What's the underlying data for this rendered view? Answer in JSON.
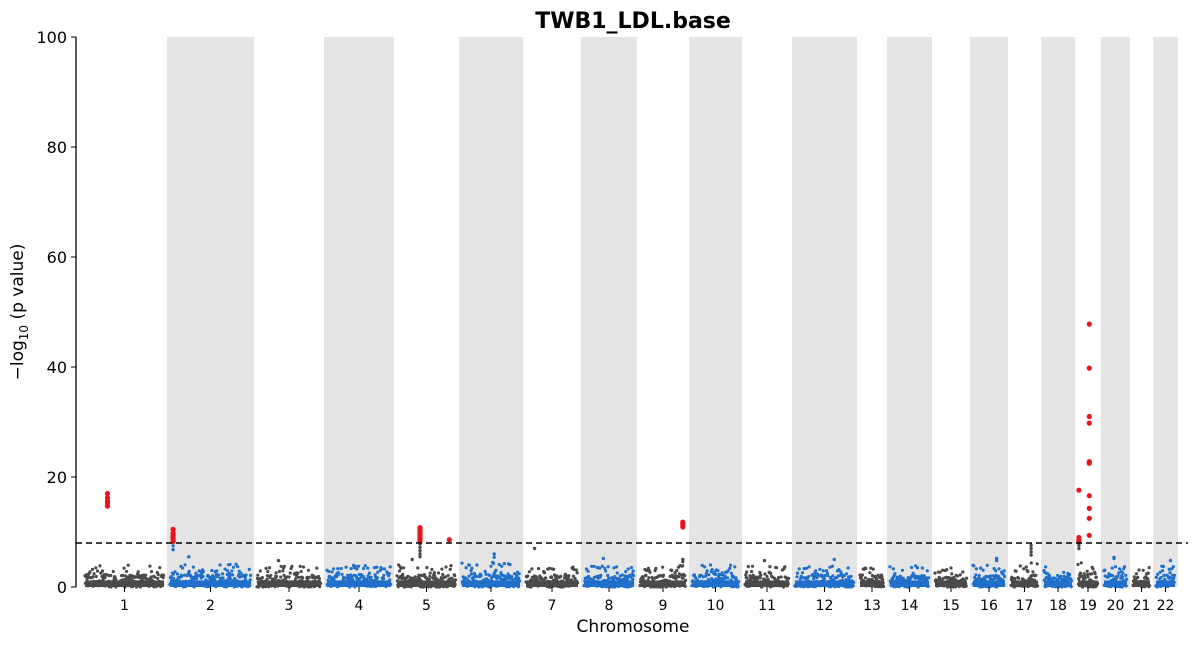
{
  "chart_data": {
    "type": "scatter",
    "subtype": "manhattan",
    "title": "TWB1_LDL.base",
    "xlabel": "Chromosome",
    "ylabel_main": "−log",
    "ylabel_sub": "10",
    "ylabel_tail": " (p value)",
    "ylim": [
      0,
      100
    ],
    "yticks": [
      0,
      20,
      40,
      60,
      80,
      100
    ],
    "significance_threshold": 8,
    "threshold_style": "dashed",
    "alternating_background": true,
    "colors": {
      "odd_chromosomes": "#4a4a4a",
      "even_chromosomes": "#1f6fcb",
      "significant": "#e8141b",
      "band": "#e4e4e4",
      "threshold": "#000000"
    },
    "chromosomes": [
      {
        "label": "1",
        "baseline_max": 4.0,
        "peaks": [
          {
            "pos": 0.3,
            "values": [
              17,
              16.2,
              15.6,
              15.2,
              14.7
            ],
            "significant": true
          }
        ]
      },
      {
        "label": "2",
        "baseline_max": 4.2,
        "peaks": [
          {
            "pos": 0.07,
            "values": [
              10.5,
              9.8,
              9.4,
              9.0,
              8.7,
              8.3,
              7.5,
              6.8
            ],
            "significant": true
          },
          {
            "pos": 0.25,
            "values": [
              5.5
            ],
            "significant": false
          }
        ]
      },
      {
        "label": "3",
        "baseline_max": 4.0,
        "peaks": [
          {
            "pos": 0.35,
            "values": [
              4.8
            ],
            "significant": false
          }
        ]
      },
      {
        "label": "4",
        "baseline_max": 4.0,
        "peaks": []
      },
      {
        "label": "5",
        "baseline_max": 4.2,
        "peaks": [
          {
            "pos": 0.4,
            "values": [
              10.8,
              10.5,
              10.2,
              9.9,
              9.6,
              9.3,
              9.0,
              8.7,
              8.3,
              7.8,
              7.2,
              6.6,
              6.0,
              5.5
            ],
            "significant": true
          },
          {
            "pos": 0.85,
            "values": [
              8.6
            ],
            "significant": true
          },
          {
            "pos": 0.28,
            "values": [
              5.0
            ],
            "significant": false
          }
        ]
      },
      {
        "label": "6",
        "baseline_max": 4.5,
        "peaks": [
          {
            "pos": 0.55,
            "values": [
              6.0,
              5.4
            ],
            "significant": false
          }
        ]
      },
      {
        "label": "7",
        "baseline_max": 3.8,
        "peaks": [
          {
            "pos": 0.2,
            "values": [
              7.0
            ],
            "significant": false
          }
        ]
      },
      {
        "label": "8",
        "baseline_max": 4.0,
        "peaks": [
          {
            "pos": 0.4,
            "values": [
              5.2
            ],
            "significant": false
          }
        ]
      },
      {
        "label": "9",
        "baseline_max": 4.0,
        "peaks": [
          {
            "pos": 0.88,
            "values": [
              11.8,
              11.5,
              11.2,
              10.9
            ],
            "significant": true
          },
          {
            "pos": 0.88,
            "values": [
              5.0,
              4.6
            ],
            "significant": false
          }
        ]
      },
      {
        "label": "10",
        "baseline_max": 4.0,
        "peaks": []
      },
      {
        "label": "11",
        "baseline_max": 3.8,
        "peaks": [
          {
            "pos": 0.45,
            "values": [
              4.8
            ],
            "significant": false
          }
        ]
      },
      {
        "label": "12",
        "baseline_max": 4.0,
        "peaks": [
          {
            "pos": 0.65,
            "values": [
              5.0
            ],
            "significant": false
          }
        ]
      },
      {
        "label": "13",
        "baseline_max": 3.6,
        "peaks": []
      },
      {
        "label": "14",
        "baseline_max": 4.0,
        "peaks": []
      },
      {
        "label": "15",
        "baseline_max": 3.6,
        "peaks": []
      },
      {
        "label": "16",
        "baseline_max": 4.0,
        "peaks": [
          {
            "pos": 0.7,
            "values": [
              5.2,
              4.8
            ],
            "significant": false
          }
        ]
      },
      {
        "label": "17",
        "baseline_max": 4.5,
        "peaks": [
          {
            "pos": 0.7,
            "values": [
              7.6,
              7.0,
              6.4,
              5.8
            ],
            "significant": false
          }
        ]
      },
      {
        "label": "18",
        "baseline_max": 3.8,
        "peaks": []
      },
      {
        "label": "19",
        "baseline_max": 4.5,
        "peaks": [
          {
            "pos": 0.15,
            "values": [
              17.6,
              9.0,
              8.6,
              8.2
            ],
            "significant": true
          },
          {
            "pos": 0.15,
            "values": [
              7.6,
              7.0
            ],
            "significant": false
          },
          {
            "pos": 0.55,
            "values": [
              47.8,
              39.8,
              31.0,
              29.8,
              22.8,
              22.5,
              16.6,
              14.3,
              12.5,
              9.4
            ],
            "significant": true
          }
        ]
      },
      {
        "label": "20",
        "baseline_max": 4.0,
        "peaks": [
          {
            "pos": 0.45,
            "values": [
              5.4,
              5.2
            ],
            "significant": false
          }
        ]
      },
      {
        "label": "21",
        "baseline_max": 3.6,
        "peaks": []
      },
      {
        "label": "22",
        "baseline_max": 4.0,
        "peaks": [
          {
            "pos": 0.7,
            "values": [
              4.8
            ],
            "significant": false
          }
        ]
      }
    ]
  }
}
